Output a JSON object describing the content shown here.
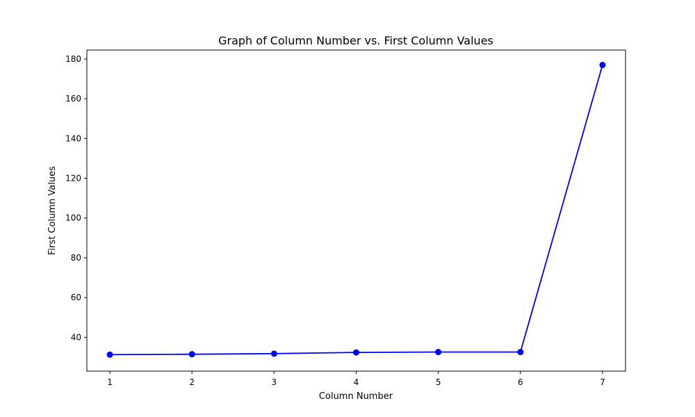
{
  "chart_data": {
    "type": "line",
    "title": "Graph of Column Number vs. First Column Values",
    "xlabel": "Column Number",
    "ylabel": "First Column Values",
    "x": [
      1,
      2,
      3,
      4,
      5,
      6,
      7
    ],
    "series": [
      {
        "values": [
          31.3,
          31.5,
          31.8,
          32.4,
          32.6,
          32.6,
          177.0
        ],
        "color": "#0000ff",
        "marker": "circle"
      }
    ],
    "xlim": [
      0.72,
      7.28
    ],
    "ylim": [
      23.0,
      184.5
    ],
    "xticks": [
      "1",
      "2",
      "3",
      "4",
      "5",
      "6",
      "7"
    ],
    "yticks": [
      "40",
      "60",
      "80",
      "100",
      "120",
      "140",
      "160",
      "180"
    ],
    "grid": false,
    "legend": "none"
  }
}
